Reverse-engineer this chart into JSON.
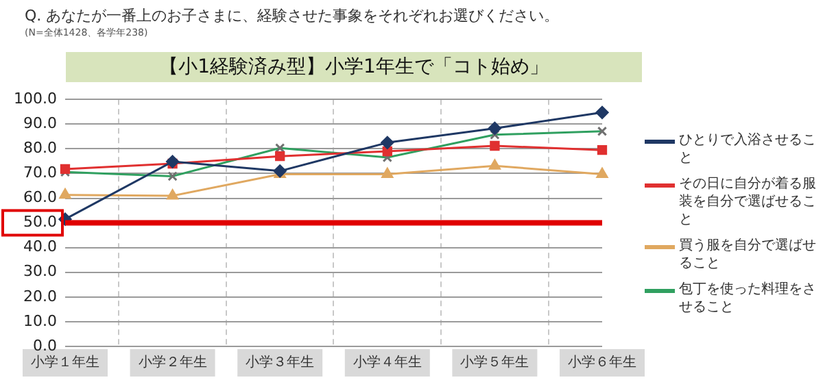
{
  "chart_data": {
    "type": "line",
    "title": "【小1経験済み型】小学1年生で「コト始め」",
    "annotations": [
      "Q. あなたが一番上のお子さまに、経験させた事象をそれぞれお選びください。",
      "(N=全体1428、各学年238)"
    ],
    "categories": [
      "小学１年生",
      "小学２年生",
      "小学３年生",
      "小学４年生",
      "小学５年生",
      "小学６年生"
    ],
    "series": [
      {
        "name": "ひとりで入浴させること",
        "color": "#1f3864",
        "marker": "diamond",
        "values": [
          51.5,
          74.8,
          71.0,
          82.5,
          88.3,
          94.7
        ]
      },
      {
        "name": "その日に自分が着る服装を自分で選ばせること",
        "color": "#e03030",
        "marker": "square",
        "values": [
          71.8,
          74.0,
          77.0,
          79.0,
          81.2,
          79.5
        ]
      },
      {
        "name": "買う服を自分で選ばせること",
        "color": "#e0a860",
        "marker": "triangle",
        "values": [
          61.3,
          61.0,
          69.7,
          69.7,
          73.1,
          69.7
        ]
      },
      {
        "name": "包丁を使った料理をさせること",
        "color": "#30a060",
        "marker": "cross",
        "values": [
          70.6,
          68.9,
          80.3,
          76.5,
          85.7,
          87.1
        ]
      }
    ],
    "ylim": [
      0,
      100
    ],
    "yticks": [
      {
        "value": 0,
        "label": "0.0"
      },
      {
        "value": 10,
        "label": "10.0"
      },
      {
        "value": 20,
        "label": "20.0"
      },
      {
        "value": 30,
        "label": "30.0"
      },
      {
        "value": 40,
        "label": "40.0"
      },
      {
        "value": 50,
        "label": "50.0"
      },
      {
        "value": 60,
        "label": "60.0"
      },
      {
        "value": 70,
        "label": "70.0"
      },
      {
        "value": 80,
        "label": "80.0"
      },
      {
        "value": 90,
        "label": "90.0"
      },
      {
        "value": 100,
        "label": "100.0"
      }
    ],
    "ref_lines": [
      {
        "axis": "y",
        "value": 50,
        "color": "#e00000"
      }
    ],
    "grid": true,
    "legend": "right"
  }
}
